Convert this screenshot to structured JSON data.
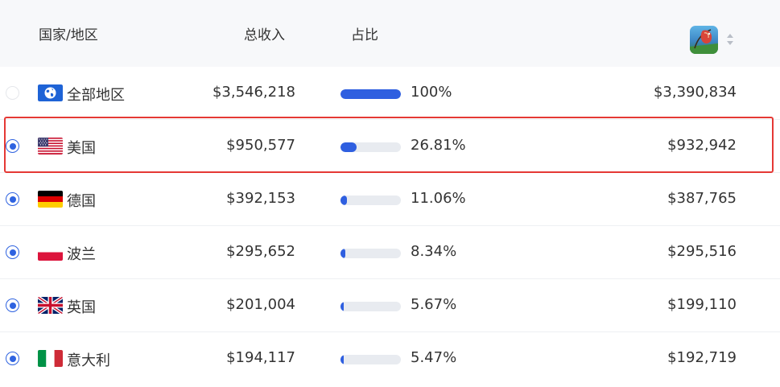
{
  "header": {
    "country_label": "国家/地区",
    "total_label": "总收入",
    "share_label": "占比",
    "app_icon": "fishing-game-app-icon",
    "sort_icon": "sort-icon"
  },
  "rows": [
    {
      "name": "全部地区",
      "flag": "globe-icon",
      "revenue": "$3,546,218",
      "share": "100%",
      "share_value": 100,
      "app_revenue": "$3,390,834",
      "selected": false
    },
    {
      "name": "美国",
      "flag": "us-flag",
      "revenue": "$950,577",
      "share": "26.81%",
      "share_value": 26.81,
      "app_revenue": "$932,942",
      "selected": true
    },
    {
      "name": "德国",
      "flag": "de-flag",
      "revenue": "$392,153",
      "share": "11.06%",
      "share_value": 11.06,
      "app_revenue": "$387,765",
      "selected": true
    },
    {
      "name": "波兰",
      "flag": "pl-flag",
      "revenue": "$295,652",
      "share": "8.34%",
      "share_value": 8.34,
      "app_revenue": "$295,516",
      "selected": true
    },
    {
      "name": "英国",
      "flag": "gb-flag",
      "revenue": "$201,004",
      "share": "5.67%",
      "share_value": 5.67,
      "app_revenue": "$199,110",
      "selected": true
    },
    {
      "name": "意大利",
      "flag": "it-flag",
      "revenue": "$194,117",
      "share": "5.47%",
      "share_value": 5.47,
      "app_revenue": "$192,719",
      "selected": true
    }
  ],
  "colors": {
    "accent": "#2f5fe0",
    "highlight": "#e53935",
    "header_bg": "#f7f8fa"
  }
}
